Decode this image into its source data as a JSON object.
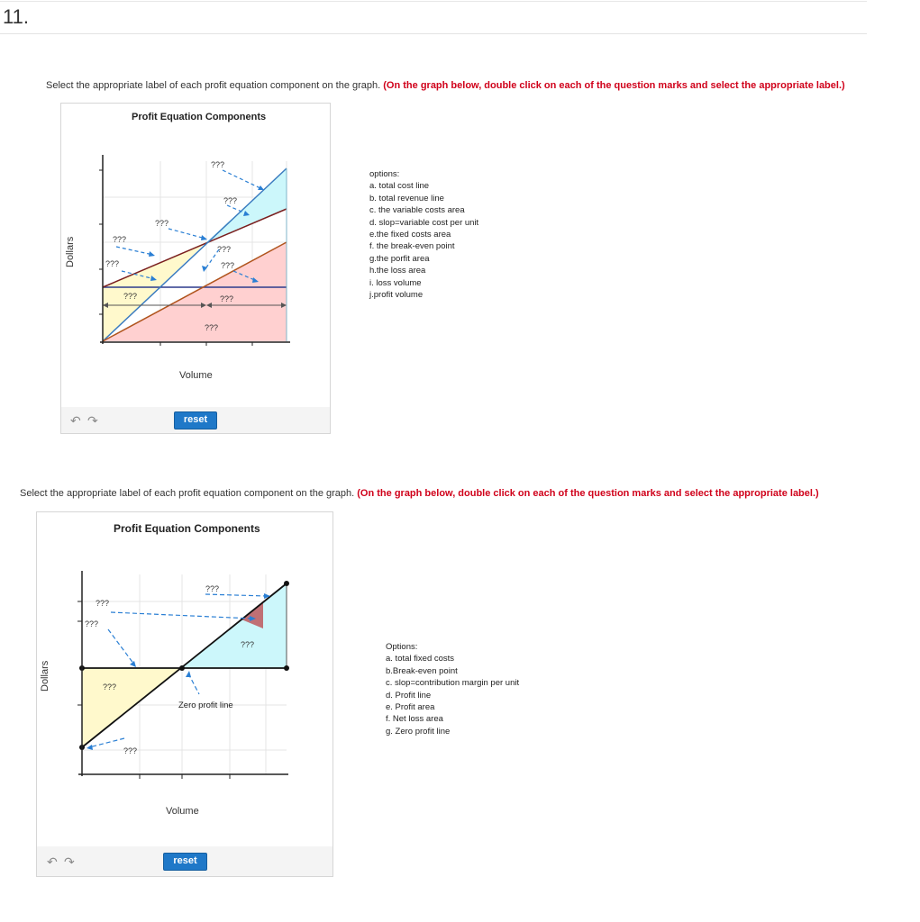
{
  "question_number": "11.",
  "part1": {
    "instruction": "Select the appropriate label of each profit equation component on the graph.",
    "instruction_emphasis": "(On the graph below, double click on each of the question marks and select the appropriate label.)",
    "title": "Profit Equation Components",
    "ylabel": "Dollars",
    "xlabel": "Volume",
    "reset_label": "reset",
    "undo_icon": "undo-icon",
    "redo_icon": "redo-icon",
    "qmark": "???",
    "options_header": "options:",
    "options": [
      "a. total cost line",
      "b. total revenue line",
      "c. the variable costs area",
      "d. slop=variable cost per unit",
      "e.the fixed costs area",
      "f. the break-even point",
      "g.the porfit area",
      "h.the loss area",
      "i. loss volume",
      "j.profit volume"
    ]
  },
  "part2": {
    "instruction": "Select the appropriate label of each profit equation component on the graph.",
    "instruction_emphasis": "(On the graph below, double click on each of the question marks and select the appropriate label.)",
    "title": "Profit Equation Components",
    "ylabel": "Dollars",
    "xlabel": "Volume",
    "reset_label": "reset",
    "undo_icon": "undo-icon",
    "redo_icon": "redo-icon",
    "qmark": "???",
    "zero_profit_label": "Zero profit line",
    "options_header": "Options:",
    "options": [
      "a. total fixed costs",
      "b.Break-even point",
      "c. slop=contribution margin per unit",
      "d. Profit line",
      "e. Profit area",
      "f. Net loss area",
      "g. Zero profit line"
    ]
  },
  "colors": {
    "red_text": "#d0021b",
    "reset_button": "#1f78c8",
    "arrow_blue": "#2a7fd4",
    "fixed_cost_line": "#2c3a8c",
    "revenue_line": "#3a7bbf",
    "cost_line": "#7a1f1f",
    "variable_cost_line": "#b0541d",
    "loss_fill": "#fff9cc",
    "profit_fill": "#ccf7fb",
    "variable_fill": "#ffd0d0",
    "net_loss_fill": "#c07075"
  }
}
